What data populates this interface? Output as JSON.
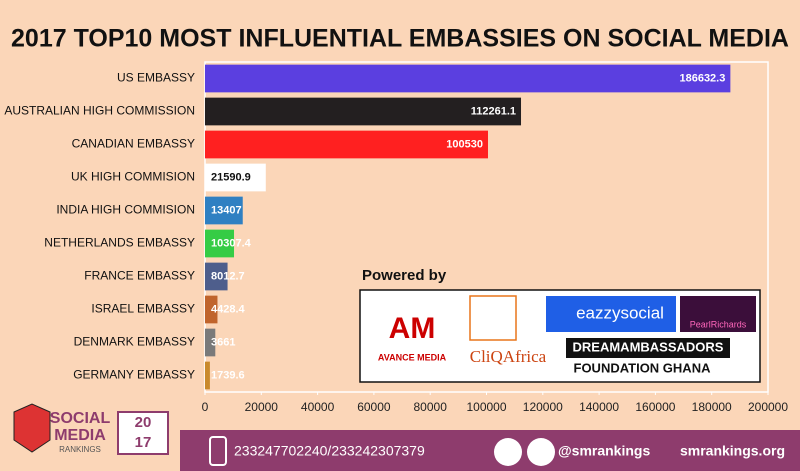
{
  "chart_data": {
    "type": "bar",
    "orientation": "horizontal",
    "title": "2017 TOP10 MOST INFLUENTIAL EMBASSIES ON SOCIAL MEDIA",
    "categories": [
      "US EMBASSY",
      "AUSTRALIAN HIGH COMMISSION",
      "CANADIAN EMBASSY",
      "UK HIGH COMMISION",
      "INDIA HIGH COMMISION",
      "NETHERLANDS EMBASSY",
      "FRANCE EMBASSY",
      "ISRAEL EMBASSY",
      "DENMARK EMBASSY",
      "GERMANY EMBASSY"
    ],
    "values": [
      186632.3,
      112261.1,
      100530,
      21590.9,
      13407,
      10307.4,
      8012.7,
      4428.4,
      3661,
      1739.6
    ],
    "colors": [
      "#5b3fe0",
      "#231f20",
      "#ff2020",
      "#ffffff",
      "#2f80c2",
      "#35cc45",
      "#4e5e8c",
      "#c0642c",
      "#7a7a7a",
      "#c98a2c"
    ],
    "xlim": [
      0,
      200000
    ],
    "xticks": [
      0,
      20000,
      40000,
      60000,
      80000,
      100000,
      120000,
      140000,
      160000,
      180000,
      200000
    ],
    "grid": false
  },
  "sponsors": {
    "heading": "Powered by",
    "logos": [
      "AM",
      "AVANCE MEDIA",
      "CliQAfrica",
      "eazzysocial",
      "PearlRichards",
      "DREAMAMBASSADORS",
      "FOUNDATION GHANA"
    ]
  },
  "footer": {
    "brand": [
      "SOCIAL",
      "MEDIA",
      "RANKINGS"
    ],
    "year": [
      "20",
      "17"
    ],
    "phone": "233247702240/233242307379",
    "handle": "@smrankings",
    "website": "smrankings.org"
  }
}
